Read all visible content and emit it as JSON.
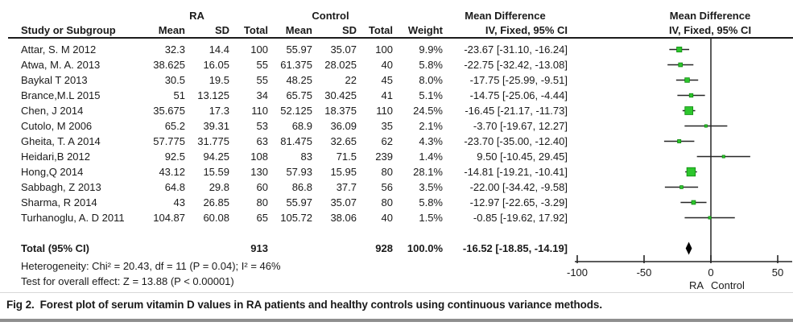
{
  "table": {
    "group_headers": {
      "ra": "RA",
      "control": "Control",
      "mean_difference": "Mean Difference"
    },
    "col_headers": {
      "study": "Study or Subgroup",
      "ra_mean": "Mean",
      "ra_sd": "SD",
      "ra_total": "Total",
      "ctrl_mean": "Mean",
      "ctrl_sd": "SD",
      "ctrl_total": "Total",
      "weight": "Weight",
      "ci": "IV, Fixed, 95% CI"
    },
    "rows": [
      {
        "study": "Attar, S. M 2012",
        "mean": "32.3",
        "sd": "14.4",
        "total": "100",
        "c_mean": "55.97",
        "c_sd": "35.07",
        "c_total": "100",
        "weight": "9.9%",
        "ci": "-23.67 [-31.10, -16.24]"
      },
      {
        "study": "Atwa, M. A. 2013",
        "mean": "38.625",
        "sd": "16.05",
        "total": "55",
        "c_mean": "61.375",
        "c_sd": "28.025",
        "c_total": "40",
        "weight": "5.8%",
        "ci": "-22.75 [-32.42, -13.08]"
      },
      {
        "study": "Baykal T 2013",
        "mean": "30.5",
        "sd": "19.5",
        "total": "55",
        "c_mean": "48.25",
        "c_sd": "22",
        "c_total": "45",
        "weight": "8.0%",
        "ci": "-17.75 [-25.99, -9.51]"
      },
      {
        "study": "Brance,M.L 2015",
        "mean": "51",
        "sd": "13.125",
        "total": "34",
        "c_mean": "65.75",
        "c_sd": "30.425",
        "c_total": "41",
        "weight": "5.1%",
        "ci": "-14.75 [-25.06, -4.44]"
      },
      {
        "study": "Chen, J 2014",
        "mean": "35.675",
        "sd": "17.3",
        "total": "110",
        "c_mean": "52.125",
        "c_sd": "18.375",
        "c_total": "110",
        "weight": "24.5%",
        "ci": "-16.45 [-21.17, -11.73]"
      },
      {
        "study": "Cutolo, M 2006",
        "mean": "65.2",
        "sd": "39.31",
        "total": "53",
        "c_mean": "68.9",
        "c_sd": "36.09",
        "c_total": "35",
        "weight": "2.1%",
        "ci": "-3.70 [-19.67, 12.27]"
      },
      {
        "study": "Gheita, T. A 2014",
        "mean": "57.775",
        "sd": "31.775",
        "total": "63",
        "c_mean": "81.475",
        "c_sd": "32.65",
        "c_total": "62",
        "weight": "4.3%",
        "ci": "-23.70 [-35.00, -12.40]"
      },
      {
        "study": "Heidari,B 2012",
        "mean": "92.5",
        "sd": "94.25",
        "total": "108",
        "c_mean": "83",
        "c_sd": "71.5",
        "c_total": "239",
        "weight": "1.4%",
        "ci": "9.50 [-10.45, 29.45]"
      },
      {
        "study": "Hong,Q 2014",
        "mean": "43.12",
        "sd": "15.59",
        "total": "130",
        "c_mean": "57.93",
        "c_sd": "15.95",
        "c_total": "80",
        "weight": "28.1%",
        "ci": "-14.81 [-19.21, -10.41]"
      },
      {
        "study": "Sabbagh, Z 2013",
        "mean": "64.8",
        "sd": "29.8",
        "total": "60",
        "c_mean": "86.8",
        "c_sd": "37.7",
        "c_total": "56",
        "weight": "3.5%",
        "ci": "-22.00 [-34.42, -9.58]"
      },
      {
        "study": "Sharma, R 2014",
        "mean": "43",
        "sd": "26.85",
        "total": "80",
        "c_mean": "55.97",
        "c_sd": "35.07",
        "c_total": "80",
        "weight": "5.8%",
        "ci": "-12.97 [-22.65, -3.29]"
      },
      {
        "study": "Turhanoglu, A. D 2011",
        "mean": "104.87",
        "sd": "60.08",
        "total": "65",
        "c_mean": "105.72",
        "c_sd": "38.06",
        "c_total": "40",
        "weight": "1.5%",
        "ci": "-0.85 [-19.62, 17.92]"
      }
    ],
    "total_row": {
      "label": "Total (95% CI)",
      "total": "913",
      "c_total": "928",
      "weight": "100.0%",
      "ci": "-16.52 [-18.85, -14.19]"
    },
    "heterogeneity": "Heterogeneity: Chi² = 20.43, df = 11 (P = 0.04); I² = 46%",
    "overall_effect": "Test for overall effect: Z = 13.88 (P < 0.00001)"
  },
  "chart_data": {
    "type": "forest",
    "title": "Mean Difference",
    "subtitle": "IV, Fixed, 95% CI",
    "effect_model": "IV, Fixed, 95% CI",
    "x_ticks": [
      -100,
      -50,
      0,
      50
    ],
    "x_range": [
      -109,
      61
    ],
    "axis_sublabels": [
      "RA",
      "Control"
    ],
    "studies": [
      {
        "name": "Attar, S. M 2012",
        "md": -23.67,
        "lo": -31.1,
        "hi": -16.24,
        "weight_pct": 9.9
      },
      {
        "name": "Atwa, M. A. 2013",
        "md": -22.75,
        "lo": -32.42,
        "hi": -13.08,
        "weight_pct": 5.8
      },
      {
        "name": "Baykal T 2013",
        "md": -17.75,
        "lo": -25.99,
        "hi": -9.51,
        "weight_pct": 8.0
      },
      {
        "name": "Brance,M.L 2015",
        "md": -14.75,
        "lo": -25.06,
        "hi": -4.44,
        "weight_pct": 5.1
      },
      {
        "name": "Chen, J 2014",
        "md": -16.45,
        "lo": -21.17,
        "hi": -11.73,
        "weight_pct": 24.5
      },
      {
        "name": "Cutolo, M 2006",
        "md": -3.7,
        "lo": -19.67,
        "hi": 12.27,
        "weight_pct": 2.1
      },
      {
        "name": "Gheita, T. A 2014",
        "md": -23.7,
        "lo": -35.0,
        "hi": -12.4,
        "weight_pct": 4.3
      },
      {
        "name": "Heidari,B 2012",
        "md": 9.5,
        "lo": -10.45,
        "hi": 29.45,
        "weight_pct": 1.4
      },
      {
        "name": "Hong,Q 2014",
        "md": -14.81,
        "lo": -19.21,
        "hi": -10.41,
        "weight_pct": 28.1
      },
      {
        "name": "Sabbagh, Z 2013",
        "md": -22.0,
        "lo": -34.42,
        "hi": -9.58,
        "weight_pct": 3.5
      },
      {
        "name": "Sharma, R 2014",
        "md": -12.97,
        "lo": -22.65,
        "hi": -3.29,
        "weight_pct": 5.8
      },
      {
        "name": "Turhanoglu, A. D 2011",
        "md": -0.85,
        "lo": -19.62,
        "hi": 17.92,
        "weight_pct": 1.5
      }
    ],
    "total": {
      "md": -16.52,
      "lo": -18.85,
      "hi": -14.19
    },
    "colors": {
      "marker_fill": "#2dc62d",
      "marker_stroke": "#0e8a0e",
      "line": "#262626",
      "diamond": "#000000"
    }
  },
  "caption": {
    "fig_label": "Fig 2.",
    "text": "Forest plot of serum vitamin D values in RA patients and healthy controls using continuous variance methods."
  }
}
